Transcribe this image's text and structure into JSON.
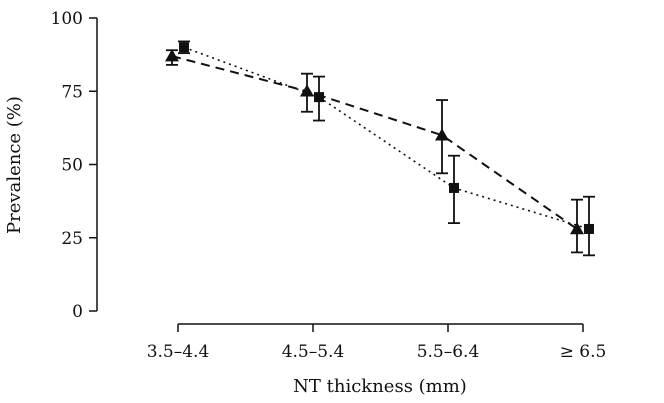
{
  "chart_data": {
    "type": "line",
    "xlabel": "NT thickness (mm)",
    "ylabel": "Prevalence (%)",
    "categories": [
      "3.5–4.4",
      "4.5–5.4",
      "5.5–6.4",
      "≥ 6.5"
    ],
    "ylim": [
      0,
      100
    ],
    "yticks": [
      0,
      25,
      50,
      75,
      100
    ],
    "grid": false,
    "legend": "none",
    "series": [
      {
        "marker": "triangle",
        "line_style": "dashed",
        "values": [
          87,
          75,
          60,
          28
        ],
        "err_low": [
          84,
          68,
          47,
          20
        ],
        "err_high": [
          89,
          81,
          72,
          38
        ]
      },
      {
        "marker": "square",
        "line_style": "dotted",
        "values": [
          90,
          73,
          42,
          28
        ],
        "err_low": [
          88,
          65,
          30,
          19
        ],
        "err_high": [
          92,
          80,
          53,
          39
        ]
      }
    ]
  }
}
